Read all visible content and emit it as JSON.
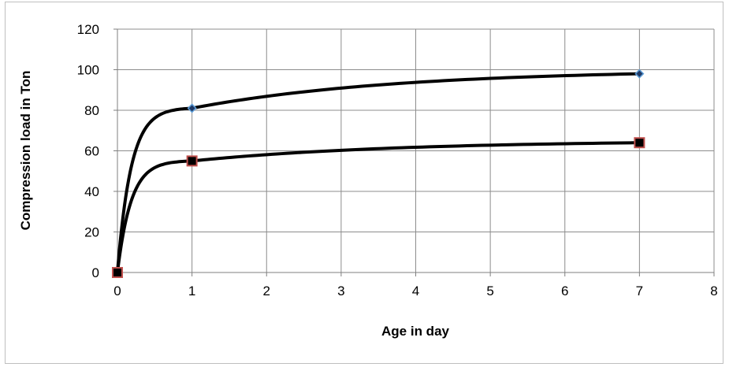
{
  "chart_data": {
    "type": "line",
    "title": "",
    "xlabel": "Age in day",
    "ylabel": "Compression load in Ton",
    "xlim": [
      0,
      8
    ],
    "ylim": [
      0,
      120
    ],
    "xticks": [
      0,
      1,
      2,
      3,
      4,
      5,
      6,
      7,
      8
    ],
    "yticks": [
      0,
      20,
      40,
      60,
      80,
      100,
      120
    ],
    "grid": true,
    "legend": "none",
    "series": [
      {
        "x": [
          0,
          1,
          7
        ],
        "y": [
          0,
          81,
          98
        ],
        "line_color": "#000000",
        "marker": "diamond",
        "marker_fill": "#1f3864",
        "marker_edge": "#5b9bd5"
      },
      {
        "x": [
          0,
          1,
          7
        ],
        "y": [
          0,
          55,
          64
        ],
        "line_color": "#000000",
        "marker": "square",
        "marker_fill": "#000000",
        "marker_edge": "#c0504d"
      }
    ]
  }
}
